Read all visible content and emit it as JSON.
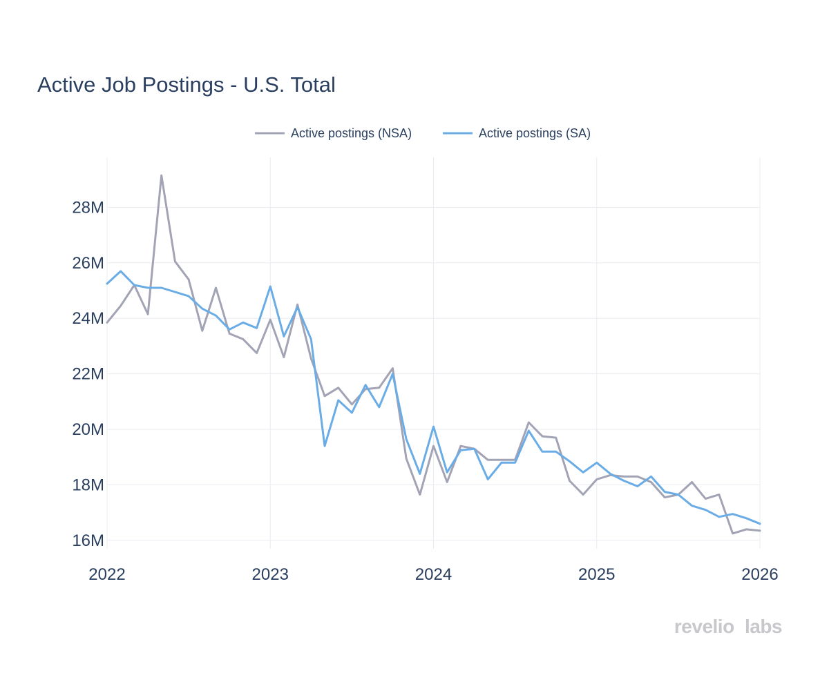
{
  "chart_data": {
    "type": "line",
    "title": "Active Job Postings - U.S. Total",
    "xlabel": "",
    "ylabel": "",
    "x_start": "2022-01",
    "x_ticks": [
      {
        "value": 2022,
        "label": "2022"
      },
      {
        "value": 2023,
        "label": "2023"
      },
      {
        "value": 2024,
        "label": "2024"
      },
      {
        "value": 2025,
        "label": "2025"
      },
      {
        "value": 2026,
        "label": "2026"
      }
    ],
    "y_ticks": [
      {
        "value": 16,
        "label": "16M"
      },
      {
        "value": 18,
        "label": "18M"
      },
      {
        "value": 20,
        "label": "20M"
      },
      {
        "value": 22,
        "label": "22M"
      },
      {
        "value": 24,
        "label": "24M"
      },
      {
        "value": 26,
        "label": "26M"
      },
      {
        "value": 28,
        "label": "28M"
      }
    ],
    "xlim": [
      2022,
      2026
    ],
    "ylim": [
      15.7,
      29.8
    ],
    "y_unit": "millions",
    "grid": true,
    "legend_position": "top-center",
    "series": [
      {
        "name": "Active postings (NSA)",
        "color": "#a2a3b4",
        "values": [
          23.85,
          24.45,
          25.2,
          24.15,
          29.15,
          26.05,
          25.4,
          23.55,
          25.1,
          23.45,
          23.25,
          22.75,
          23.95,
          22.6,
          24.5,
          22.55,
          21.2,
          21.5,
          20.9,
          21.45,
          21.5,
          22.2,
          18.95,
          17.65,
          19.4,
          18.1,
          19.4,
          19.3,
          18.9,
          18.9,
          18.9,
          20.25,
          19.75,
          19.7,
          18.15,
          17.65,
          18.2,
          18.35,
          18.3,
          18.3,
          18.1,
          17.55,
          17.65,
          18.1,
          17.5,
          17.65,
          16.25,
          16.4,
          16.35
        ]
      },
      {
        "name": "Active postings (SA)",
        "color": "#6aace5",
        "values": [
          25.25,
          25.7,
          25.2,
          25.1,
          25.1,
          24.95,
          24.8,
          24.35,
          24.1,
          23.6,
          23.85,
          23.65,
          25.15,
          23.35,
          24.4,
          23.25,
          19.4,
          21.05,
          20.6,
          21.6,
          20.8,
          22.0,
          19.65,
          18.4,
          20.1,
          18.45,
          19.25,
          19.3,
          18.2,
          18.8,
          18.8,
          19.95,
          19.2,
          19.2,
          18.85,
          18.45,
          18.8,
          18.4,
          18.15,
          17.95,
          18.3,
          17.75,
          17.65,
          17.25,
          17.1,
          16.85,
          16.95,
          16.8,
          16.6
        ]
      }
    ]
  },
  "brand": {
    "name_part1": "revelio",
    "name_part2": "labs"
  }
}
